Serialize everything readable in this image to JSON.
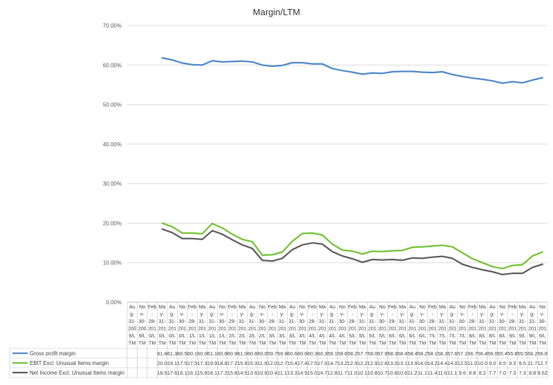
{
  "chart_data": {
    "type": "line",
    "title": "Margin/LTM",
    "xlabel": "",
    "ylabel": "",
    "ylim": [
      0,
      70
    ],
    "y_ticks": [
      "0.00%",
      "10.00%",
      "20.00%",
      "30.00%",
      "40.00%",
      "50.00%",
      "60.00%",
      "70.00%"
    ],
    "grid": "horizontal",
    "legend": "bottom data table",
    "categories": [
      "Aug-31-2009/LTM",
      "Nov-30-2009/LTM",
      "Feb-28-2010/LTM",
      "May-31-2010/LTM",
      "Aug-31-2010/LTM",
      "Nov-30-2010/LTM",
      "Feb-28-2011/LTM",
      "May-31-2011/LTM",
      "Aug-31-2011/LTM",
      "Nov-30-2011/LTM",
      "Feb-29-2012/LTM",
      "May-31-2012/LTM",
      "Aug-31-2012/LTM",
      "Nov-30-2012/LTM",
      "Feb-28-2013/LTM",
      "May-31-2013/LTM",
      "Aug-31-2013/LTM",
      "Nov-30-2013/LTM",
      "Feb-28-2014/LTM",
      "May-31-2014/LTM",
      "Aug-31-2014/LTM",
      "Nov-30-2014/LTM",
      "Feb-28-2015/LTM",
      "May-31-2015/LTM",
      "Aug-31-2015/LTM",
      "Nov-30-2015/LTM",
      "Feb-29-2016/LTM",
      "May-31-2016/LTM",
      "Aug-31-2016/LTM",
      "Nov-30-2016/LTM",
      "Feb-28-2017/LTM",
      "May-31-2017/LTM",
      "Aug-31-2017/LTM",
      "Nov-30-2017/LTM",
      "Feb-28-2018/LTM",
      "May-31-2018/LTM",
      "Aug-31-2018/LTM",
      "Nov-30-2018/LTM",
      "Feb-28-2019/LTM",
      "May-31-2019/LTM",
      "Aug-31-2019/LTM",
      "Nov-30-2019/LTM"
    ],
    "category_lines": [
      [
        "Au",
        "g-",
        "31-",
        "200",
        "9/L",
        "TM"
      ],
      [
        "No",
        "v-",
        "30-",
        "200",
        "9/L",
        "TM"
      ],
      [
        "Feb",
        "-",
        "28-",
        "201",
        "0/L",
        "TM"
      ],
      [
        "Ma",
        "y-",
        "31-",
        "201",
        "0/L",
        "TM"
      ],
      [
        "Au",
        "g-",
        "31-",
        "201",
        "0/L",
        "TM"
      ],
      [
        "No",
        "v-",
        "30-",
        "201",
        "0/L",
        "TM"
      ],
      [
        "Feb",
        "-",
        "28-",
        "201",
        "1/L",
        "TM"
      ],
      [
        "Ma",
        "y-",
        "31-",
        "201",
        "1/L",
        "TM"
      ],
      [
        "Au",
        "g-",
        "31-",
        "201",
        "1/L",
        "TM"
      ],
      [
        "No",
        "v-",
        "30-",
        "201",
        "1/L",
        "TM"
      ],
      [
        "Feb",
        "-",
        "29-",
        "201",
        "2/L",
        "TM"
      ],
      [
        "Ma",
        "y-",
        "31-",
        "201",
        "2/L",
        "TM"
      ],
      [
        "Au",
        "g-",
        "31-",
        "201",
        "2/L",
        "TM"
      ],
      [
        "No",
        "v-",
        "30-",
        "201",
        "2/L",
        "TM"
      ],
      [
        "Feb",
        "-",
        "28-",
        "201",
        "3/L",
        "TM"
      ],
      [
        "Ma",
        "y-",
        "31-",
        "201",
        "3/L",
        "TM"
      ],
      [
        "Au",
        "g-",
        "31-",
        "201",
        "3/L",
        "TM"
      ],
      [
        "No",
        "v-",
        "30-",
        "201",
        "3/L",
        "TM"
      ],
      [
        "Feb",
        "-",
        "28-",
        "201",
        "4/L",
        "TM"
      ],
      [
        "Ma",
        "y-",
        "31-",
        "201",
        "4/L",
        "TM"
      ],
      [
        "Au",
        "g-",
        "31-",
        "201",
        "4/L",
        "TM"
      ],
      [
        "No",
        "v-",
        "30-",
        "201",
        "4/L",
        "TM"
      ],
      [
        "Feb",
        "-",
        "28-",
        "201",
        "5/L",
        "TM"
      ],
      [
        "Ma",
        "y-",
        "31-",
        "201",
        "5/L",
        "TM"
      ],
      [
        "Au",
        "g-",
        "31-",
        "201",
        "5/L",
        "TM"
      ],
      [
        "No",
        "v-",
        "30-",
        "201",
        "5/L",
        "TM"
      ],
      [
        "Feb",
        "-",
        "29-",
        "201",
        "6/L",
        "TM"
      ],
      [
        "Ma",
        "y-",
        "31-",
        "201",
        "6/L",
        "TM"
      ],
      [
        "Au",
        "g-",
        "31-",
        "201",
        "6/L",
        "TM"
      ],
      [
        "No",
        "v-",
        "30-",
        "201",
        "6/L",
        "TM"
      ],
      [
        "Feb",
        "-",
        "28-",
        "201",
        "7/L",
        "TM"
      ],
      [
        "Ma",
        "y-",
        "31-",
        "201",
        "7/L",
        "TM"
      ],
      [
        "Au",
        "g-",
        "31-",
        "201",
        "7/L",
        "TM"
      ],
      [
        "No",
        "v-",
        "30-",
        "201",
        "7/L",
        "TM"
      ],
      [
        "Feb",
        "-",
        "28-",
        "201",
        "8/L",
        "TM"
      ],
      [
        "Ma",
        "y-",
        "31-",
        "201",
        "8/L",
        "TM"
      ],
      [
        "Au",
        "g-",
        "31-",
        "201",
        "8/L",
        "TM"
      ],
      [
        "No",
        "v-",
        "30-",
        "201",
        "8/L",
        "TM"
      ],
      [
        "Feb",
        "-",
        "28-",
        "201",
        "9/L",
        "TM"
      ],
      [
        "Ma",
        "y-",
        "31-",
        "201",
        "9/L",
        "TM"
      ],
      [
        "Au",
        "g-",
        "31-",
        "201",
        "9/L",
        "TM"
      ],
      [
        "No",
        "v-",
        "30-",
        "201",
        "9/L",
        "TM"
      ]
    ],
    "series": [
      {
        "name": "Gross profit margin",
        "color": "#4a86c8",
        "values": [
          null,
          null,
          null,
          61.8,
          61.3,
          60.5,
          60.1,
          60.0,
          61.1,
          60.8,
          60.9,
          61.0,
          60.8,
          60.0,
          59.7,
          59.9,
          60.6,
          60.6,
          60.3,
          60.3,
          59.1,
          58.6,
          58.2,
          57.7,
          58.0,
          57.9,
          58.3,
          58.4,
          58.4,
          58.2,
          58.1,
          58.3,
          57.6,
          57.1,
          56.7,
          56.4,
          56.0,
          55.4,
          55.8,
          55.5,
          56.2,
          56.8
        ],
        "table_text": [
          "",
          "",
          "",
          "61.8",
          "61.3",
          "60.5",
          "60.1",
          "60.0",
          "61.1",
          "60.8",
          "60.9",
          "61.0",
          "60.8",
          "60.0",
          "59.7",
          "59.9",
          "60.6",
          "60.6",
          "60.3",
          "60.3",
          "59.1",
          "58.6",
          "58.2",
          "57.7",
          "58.0",
          "57.9",
          "58.3",
          "58.4",
          "58.4",
          "58.2",
          "58.1",
          "58.3",
          "57.6",
          "57.1",
          "56.7",
          "56.4",
          "56.0",
          "55.4",
          "55.8",
          "55.5",
          "56.2",
          "56.8"
        ]
      },
      {
        "name": "EBIT Excl. Unusual Items margin",
        "color": "#70c12e",
        "values": [
          null,
          null,
          null,
          20.0,
          19.1,
          17.5,
          17.5,
          17.3,
          19.9,
          18.8,
          17.2,
          15.9,
          15.3,
          11.9,
          12.0,
          12.7,
          15.4,
          17.4,
          17.5,
          17.0,
          14.7,
          13.2,
          12.9,
          12.2,
          12.9,
          12.8,
          13.0,
          13.1,
          13.9,
          14.0,
          14.2,
          14.4,
          14.0,
          12.5,
          11.0,
          10.0,
          9.0,
          8.5,
          9.3,
          9.5,
          11.7,
          12.7
        ],
        "table_text": [
          "",
          "",
          "",
          "20.0",
          "19.1",
          "17.5",
          "17.5",
          "17.3",
          "19.9",
          "18.8",
          "17.2",
          "15.9",
          "15.3",
          "11.9",
          "12.0",
          "12.7",
          "15.4",
          "17.4",
          "17.5",
          "17.0",
          "14.7",
          "13.2",
          "12.9",
          "12.2",
          "12.9",
          "12.8",
          "13.0",
          "13.1",
          "13.9",
          "14.0",
          "14.2",
          "14.4",
          "14.0",
          "12.5",
          "11.0",
          "10.0",
          "9.0",
          "8.5",
          "9.3",
          "9.5",
          "11.7",
          "12.7"
        ]
      },
      {
        "name": "Net Income Excl. Unusual Items margin",
        "color": "#595959",
        "values": [
          null,
          null,
          null,
          18.5,
          17.6,
          16.1,
          16.1,
          15.9,
          18.1,
          17.2,
          15.8,
          14.5,
          13.6,
          10.6,
          10.4,
          11.1,
          13.3,
          14.5,
          15.0,
          14.7,
          12.8,
          11.7,
          11.0,
          10.1,
          10.8,
          10.7,
          10.8,
          10.6,
          11.2,
          11.1,
          11.4,
          11.6,
          11.1,
          9.6,
          8.8,
          8.2,
          7.7,
          7.0,
          7.3,
          7.3,
          8.8,
          9.6
        ],
        "table_text": [
          "",
          "",
          "",
          "18.5",
          "17.6",
          "16.1",
          "16.1",
          "15.9",
          "18.1",
          "17.2",
          "15.8",
          "14.5",
          "13.6",
          "10.6",
          "10.4",
          "11.1",
          "13.3",
          "14.5",
          "15.0",
          "14.7",
          "12.8",
          "11.7",
          "11.0",
          "10.1",
          "10.8",
          "10.7",
          "10.8",
          "10.6",
          "11.2",
          "11.1",
          "11.4",
          "11.6",
          "11.1",
          "9.6",
          "8.8",
          "8.2",
          "7.7",
          "7.0",
          "7.3",
          "7.3",
          "8.8",
          "9.62"
        ]
      }
    ]
  }
}
